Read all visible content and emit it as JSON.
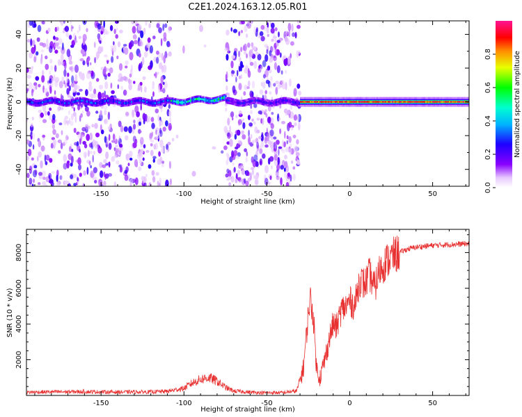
{
  "title": "C2E1.2024.163.12.05.R01",
  "chart_data": [
    {
      "type": "heatmap",
      "xlabel": "Height of straight line (km)",
      "ylabel": "Frequency (Hz)",
      "xlim": [
        -195,
        72
      ],
      "ylim": [
        -50,
        48
      ],
      "xticks": [
        -150,
        -100,
        -50,
        0,
        50
      ],
      "yticks": [
        -40,
        -20,
        0,
        20,
        40
      ],
      "colorbar": {
        "label": "Normalized spectral amplitude",
        "range": [
          0.0,
          1.0
        ],
        "ticks": [
          0.0,
          0.2,
          0.4,
          0.6,
          0.8
        ],
        "tick_labels": [
          "0.0",
          "0.2",
          "0.4",
          "0.6",
          "0.8"
        ],
        "colormap": "rainbow (white-violet-blue-cyan-green-yellow-red-magenta)"
      },
      "signal_regions": [
        {
          "x_start": -195,
          "x_end": -108,
          "kind": "noise",
          "band_peak": 0.3,
          "noise_density": 0.62
        },
        {
          "x_start": -108,
          "x_end": -75,
          "kind": "signal",
          "band_peak": 0.5,
          "noise_density": 0.02
        },
        {
          "x_start": -75,
          "x_end": -30,
          "kind": "noise",
          "band_peak": 0.25,
          "noise_density": 0.7
        },
        {
          "x_start": -30,
          "x_end": 72,
          "kind": "strong-signal",
          "band_peak": 0.95,
          "noise_density": 0.0
        }
      ]
    },
    {
      "type": "line",
      "xlabel": "Height of straight line (km)",
      "ylabel": "SNR (10 * v/v)",
      "xlim": [
        -195,
        72
      ],
      "ylim": [
        0,
        9300
      ],
      "xticks": [
        -150,
        -100,
        -50,
        0,
        50
      ],
      "yticks": [
        2000,
        4000,
        6000,
        8000
      ],
      "color": "#e83030",
      "series": [
        {
          "x": [
            -195,
            -180,
            -160,
            -140,
            -120,
            -110,
            -100,
            -95,
            -90,
            -85,
            -80,
            -75,
            -70,
            -60,
            -50,
            -40,
            -32,
            -28,
            -26,
            -24,
            -22,
            -20,
            -18,
            -15,
            -12,
            -10,
            -8,
            -5,
            -2,
            0,
            3,
            6,
            9,
            12,
            15,
            18,
            22,
            26,
            30,
            35,
            40,
            50,
            60,
            72
          ],
          "y": [
            180,
            200,
            210,
            190,
            200,
            230,
            400,
            700,
            900,
            1000,
            800,
            450,
            250,
            180,
            150,
            160,
            250,
            1500,
            3500,
            5500,
            4500,
            1500,
            1000,
            2000,
            3300,
            4000,
            3800,
            4800,
            5000,
            5300,
            5000,
            6500,
            6200,
            6800,
            6000,
            7000,
            7500,
            7800,
            8000,
            8200,
            8300,
            8400,
            8450,
            8500
          ]
        }
      ]
    }
  ]
}
